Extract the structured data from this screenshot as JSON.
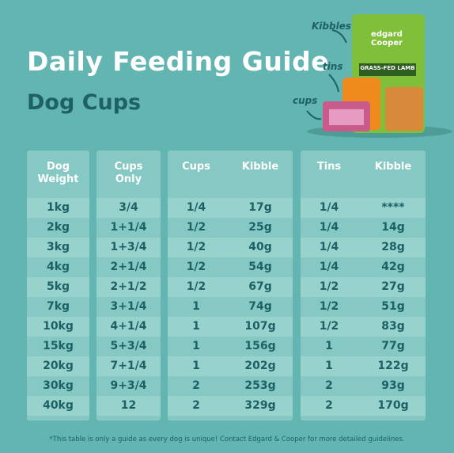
{
  "header": {
    "title": "Daily Feeding Guide",
    "subtitle": "Dog Cups"
  },
  "labels": {
    "kibbles": "Kibbles",
    "tins": "tins",
    "cups": "cups"
  },
  "product": {
    "brand": "edgard Cooper",
    "flavor": "GRASS-FED LAMB"
  },
  "table": {
    "columns": [
      "Dog Weight",
      "Cups Only",
      "Cups",
      "Kibble",
      "Tins",
      "Kibble"
    ],
    "rows": [
      [
        "1kg",
        "3/4",
        "1/4",
        "17g",
        "1/4",
        "****"
      ],
      [
        "2kg",
        "1+1/4",
        "1/2",
        "25g",
        "1/4",
        "14g"
      ],
      [
        "3kg",
        "1+3/4",
        "1/2",
        "40g",
        "1/4",
        "28g"
      ],
      [
        "4kg",
        "2+1/4",
        "1/2",
        "54g",
        "1/4",
        "42g"
      ],
      [
        "5kg",
        "2+1/2",
        "1/2",
        "67g",
        "1/2",
        "27g"
      ],
      [
        "7kg",
        "3+1/4",
        "1",
        "74g",
        "1/2",
        "51g"
      ],
      [
        "10kg",
        "4+1/4",
        "1",
        "107g",
        "1/2",
        "83g"
      ],
      [
        "15kg",
        "5+3/4",
        "1",
        "156g",
        "1",
        "77g"
      ],
      [
        "20kg",
        "7+1/4",
        "1",
        "202g",
        "1",
        "122g"
      ],
      [
        "30kg",
        "9+3/4",
        "2",
        "253g",
        "2",
        "93g"
      ],
      [
        "40kg",
        "12",
        "2",
        "329g",
        "2",
        "170g"
      ]
    ]
  },
  "footnote": "*This table is only a guide as every dog is unique! Contact Edgard & Cooper for more detailed guidelines."
}
